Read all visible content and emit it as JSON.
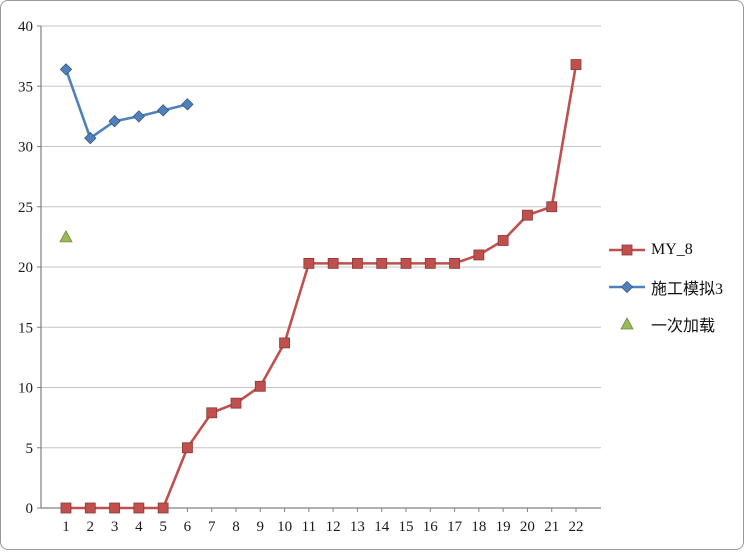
{
  "chart_data": {
    "type": "line",
    "title": "",
    "xlabel": "",
    "ylabel": "",
    "x": [
      1,
      2,
      3,
      4,
      5,
      6,
      7,
      8,
      9,
      10,
      11,
      12,
      13,
      14,
      15,
      16,
      17,
      18,
      19,
      20,
      21,
      22
    ],
    "ylim": [
      0,
      40
    ],
    "ytick_step": 5,
    "grid": true,
    "legend_position": "right",
    "series": [
      {
        "name": "MY_8",
        "color": "#C0504D",
        "edge_color": "#8c3836",
        "marker": "square",
        "line": true,
        "values": [
          0,
          0,
          0,
          0,
          0,
          5,
          7.9,
          8.7,
          10.1,
          13.7,
          20.3,
          20.3,
          20.3,
          20.3,
          20.3,
          20.3,
          20.3,
          21,
          22.2,
          24.3,
          25,
          36.8
        ]
      },
      {
        "name": "施工模拟3",
        "color": "#4F81BD",
        "edge_color": "#35577d",
        "marker": "diamond",
        "line": true,
        "values": [
          36.4,
          30.7,
          32.1,
          32.5,
          33,
          33.5
        ]
      },
      {
        "name": "一次加载",
        "color": "#9BBB59",
        "edge_color": "#6f8a3d",
        "marker": "triangle",
        "line": false,
        "values": [
          22.5
        ]
      }
    ]
  }
}
